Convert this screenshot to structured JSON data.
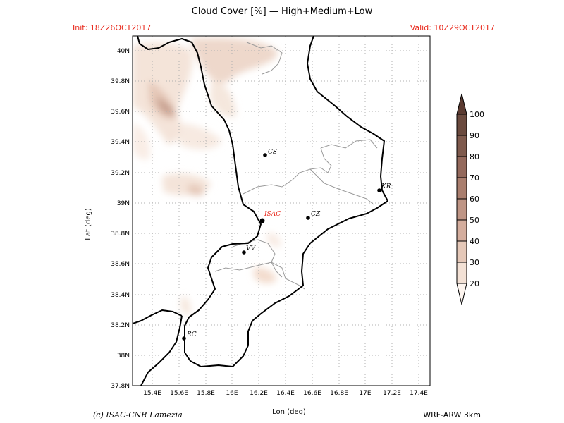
{
  "header": {
    "title": "Cloud Cover [%] — High+Medium+Low",
    "init": "Init: 18Z26OCT2017",
    "valid": "Valid: 10Z29OCT2017"
  },
  "axes": {
    "xlabel": "Lon (deg)",
    "ylabel": "Lat (deg)",
    "x_ticks": [
      "15.4E",
      "15.6E",
      "15.8E",
      "16E",
      "16.2E",
      "16.4E",
      "16.6E",
      "16.8E",
      "17E",
      "17.2E",
      "17.4E"
    ],
    "y_ticks": [
      "40N",
      "39.8N",
      "39.6N",
      "39.4N",
      "39.2N",
      "39N",
      "38.8N",
      "38.6N",
      "38.4N",
      "38.2N",
      "38N",
      "37.8N"
    ],
    "lon_range": [
      15.25,
      17.55
    ],
    "lat_range": [
      37.8,
      40.03
    ]
  },
  "cities": [
    {
      "code": "CS",
      "lon": 16.26,
      "lat": 39.31,
      "color": "#000000"
    },
    {
      "code": "KR",
      "lon": 17.12,
      "lat": 39.08,
      "color": "#000000"
    },
    {
      "code": "ISAC",
      "lon": 16.24,
      "lat": 38.88,
      "color": "#e8291c"
    },
    {
      "code": "CZ",
      "lon": 16.59,
      "lat": 38.91,
      "color": "#000000"
    },
    {
      "code": "VV",
      "lon": 16.1,
      "lat": 38.67,
      "color": "#000000"
    },
    {
      "code": "RC",
      "lon": 15.65,
      "lat": 38.11,
      "color": "#000000"
    }
  ],
  "colorbar": {
    "levels": [
      "100",
      "90",
      "80",
      "70",
      "60",
      "50",
      "40",
      "30",
      "20"
    ],
    "colors": [
      "#6b4a3e",
      "#7f5a4d",
      "#94695c",
      "#aa7e6e",
      "#bf9585",
      "#d4ad9d",
      "#e5c8b8",
      "#f3e1d5",
      "#fdf5ef"
    ]
  },
  "footer": {
    "credit": "(c) ISAC-CNR Lamezia",
    "model": "WRF-ARW 3km"
  }
}
